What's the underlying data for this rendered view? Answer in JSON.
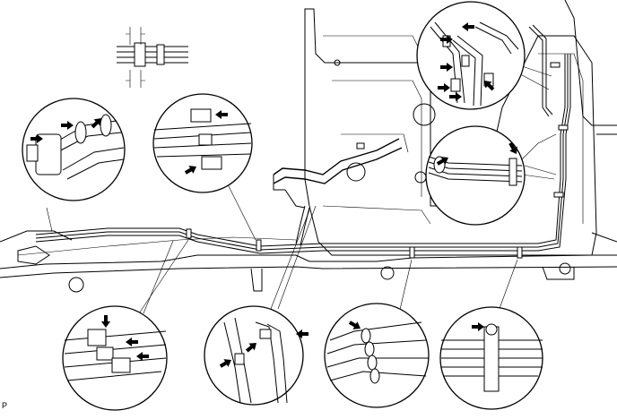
{
  "figure": {
    "label": "P"
  },
  "icons": {
    "arrow": "arrow-icon",
    "clamp": "clamp-icon"
  },
  "colors": {
    "line": "#000000",
    "background": "#ffffff"
  }
}
